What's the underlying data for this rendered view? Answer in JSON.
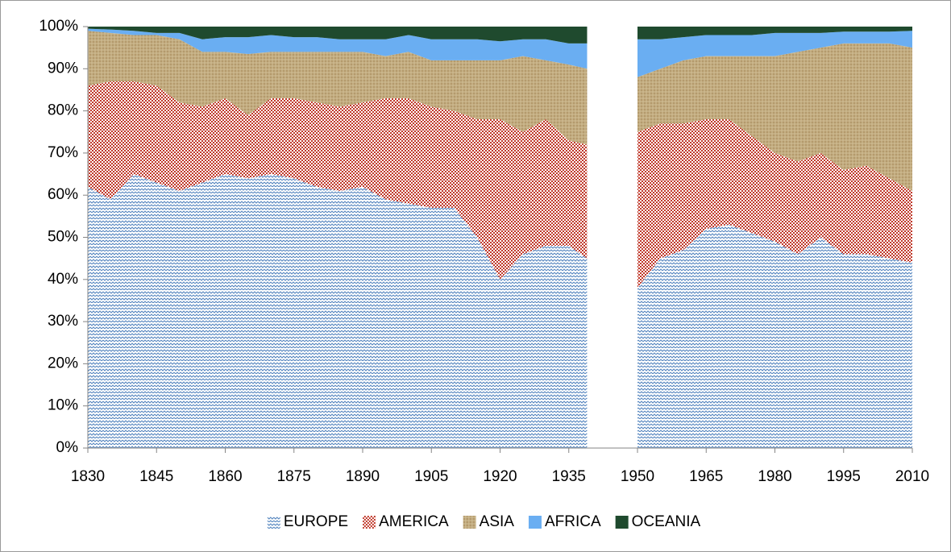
{
  "chart_data": {
    "type": "stacked_area",
    "x": [
      1830,
      1835,
      1840,
      1845,
      1850,
      1855,
      1860,
      1865,
      1870,
      1875,
      1880,
      1885,
      1890,
      1895,
      1900,
      1905,
      1910,
      1915,
      1920,
      1925,
      1930,
      1935,
      1939,
      1945,
      1950,
      1955,
      1960,
      1965,
      1970,
      1975,
      1980,
      1985,
      1990,
      1995,
      2000,
      2005,
      2010
    ],
    "series": [
      {
        "name": "EUROPE",
        "color": "#4f81bd",
        "values": [
          62,
          59,
          65,
          63,
          61,
          63,
          65,
          64,
          65,
          64,
          62,
          61,
          62,
          59,
          58,
          57,
          57,
          50,
          40,
          46,
          48,
          48,
          45,
          null,
          38,
          45,
          47,
          52,
          53,
          51,
          49,
          46,
          50,
          46,
          46,
          45,
          44
        ]
      },
      {
        "name": "AMERICA",
        "color": "#c0392b",
        "values": [
          24,
          28,
          22,
          23,
          21,
          18,
          18,
          15,
          18,
          19,
          20,
          20,
          20,
          24,
          25,
          24,
          23,
          28,
          38,
          29,
          30,
          25,
          27,
          null,
          37,
          32,
          30,
          26,
          25,
          23,
          21,
          22,
          20,
          20,
          21,
          19,
          17
        ]
      },
      {
        "name": "ASIA",
        "color": "#b49a6c",
        "values": [
          13,
          11.5,
          11,
          12,
          15,
          13,
          11,
          14.5,
          11,
          11,
          12,
          13,
          12,
          10,
          11,
          11,
          12,
          14,
          14,
          18,
          14,
          18,
          18,
          null,
          13,
          13,
          15,
          15,
          15,
          19,
          23,
          26,
          25,
          30,
          29,
          32,
          34
        ]
      },
      {
        "name": "AFRICA",
        "color": "#6aaef2",
        "values": [
          0.5,
          0.8,
          1,
          0.5,
          1.5,
          3,
          3.5,
          4,
          4,
          3.5,
          3.5,
          3,
          3,
          4,
          4,
          5,
          5,
          5,
          4.5,
          4,
          5,
          5,
          6,
          null,
          9,
          7,
          5.5,
          5,
          5,
          5,
          5.5,
          4.5,
          3.5,
          2.8,
          2.8,
          2.8,
          4
        ]
      },
      {
        "name": "OCEANIA",
        "color": "#1f4a2e",
        "values": [
          0.5,
          0.7,
          1,
          1.5,
          1.5,
          3,
          2.5,
          2.5,
          2,
          2.5,
          2.5,
          3,
          3,
          3,
          2,
          3,
          3,
          3,
          3.5,
          3,
          3,
          4,
          4,
          null,
          3,
          3,
          2.5,
          2,
          2,
          2,
          1.5,
          1.5,
          1.5,
          1.2,
          1.2,
          1.2,
          1
        ]
      }
    ],
    "xlim": [
      1830,
      2010
    ],
    "xticks": [
      1830,
      1845,
      1860,
      1875,
      1890,
      1905,
      1920,
      1935,
      1950,
      1965,
      1980,
      1995,
      2010
    ],
    "ylim": [
      0,
      100
    ],
    "yticks": [
      {
        "value": 0,
        "label": "0%"
      },
      {
        "value": 10,
        "label": "10%"
      },
      {
        "value": 20,
        "label": "20%"
      },
      {
        "value": 30,
        "label": "30%"
      },
      {
        "value": 40,
        "label": "40%"
      },
      {
        "value": 50,
        "label": "50%"
      },
      {
        "value": 60,
        "label": "60%"
      },
      {
        "value": 70,
        "label": "70%"
      },
      {
        "value": 80,
        "label": "80%"
      },
      {
        "value": 90,
        "label": "90%"
      },
      {
        "value": 100,
        "label": "100%"
      }
    ],
    "grid": false,
    "legend": "bottom"
  }
}
